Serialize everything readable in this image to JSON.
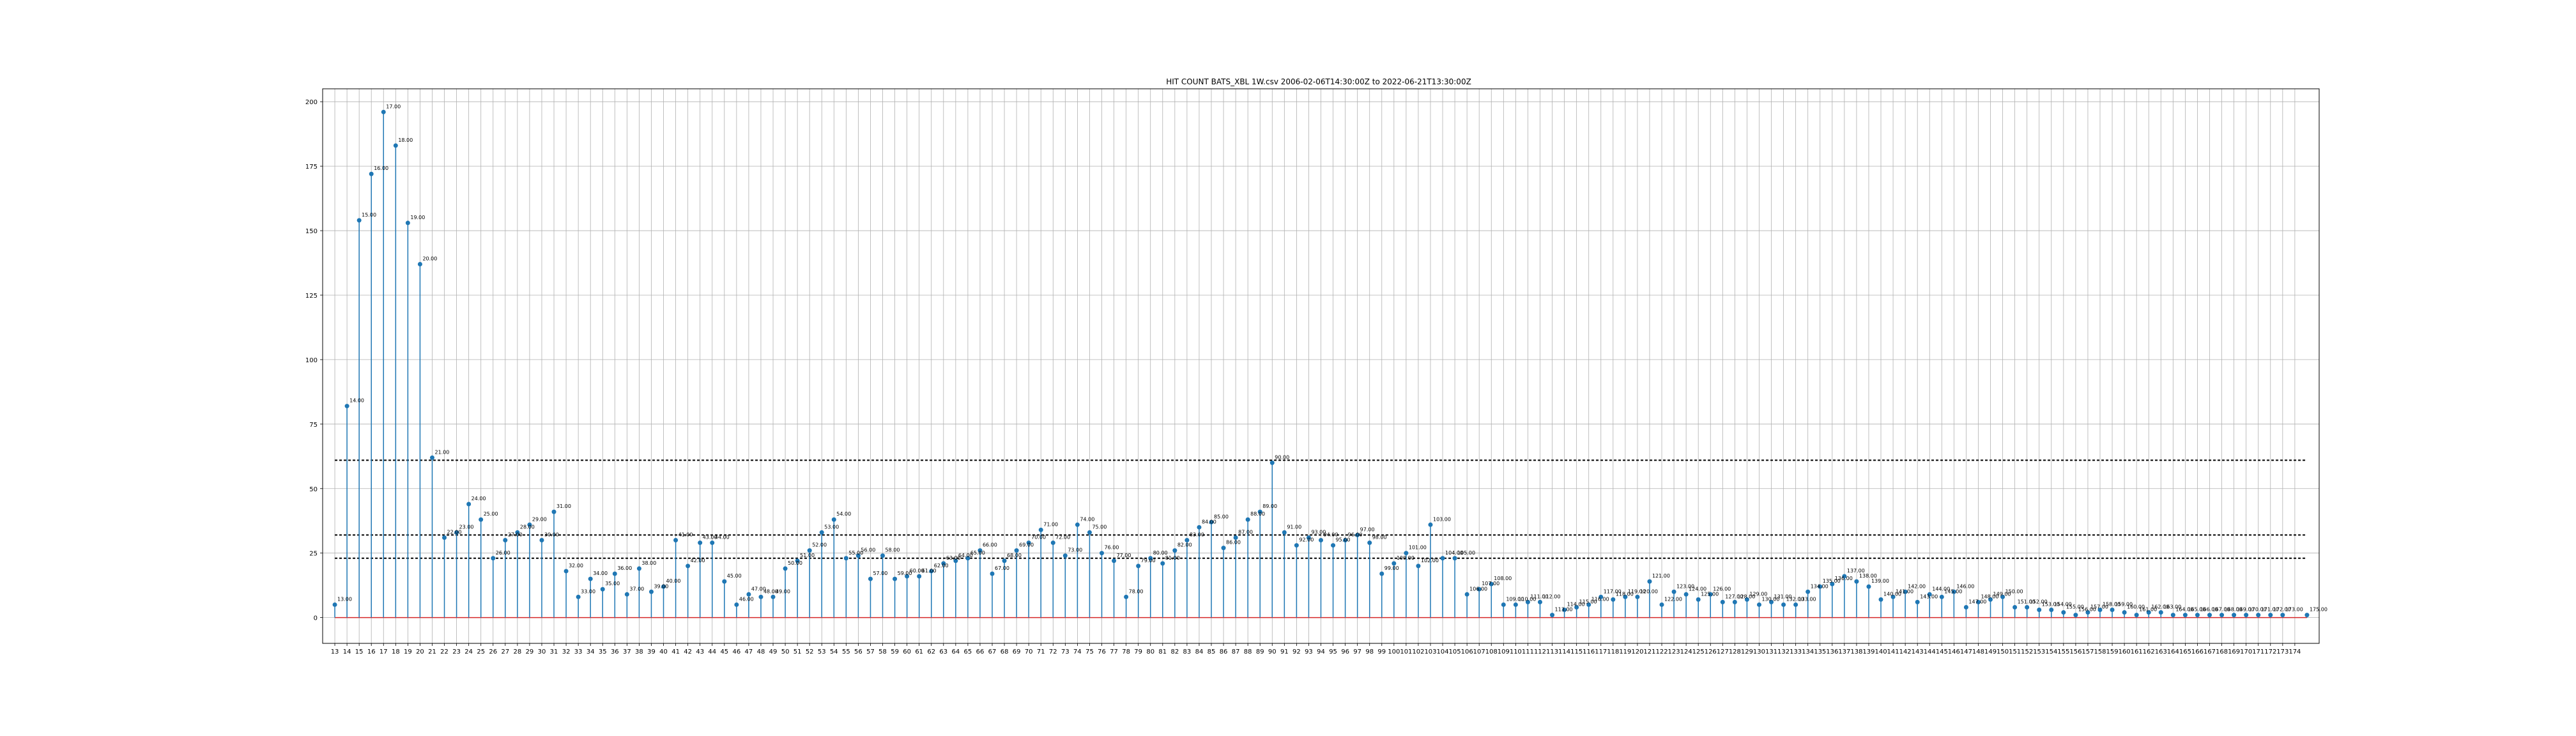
{
  "chart_data": {
    "type": "stem",
    "title": "HIT COUNT BATS_XBL 1W.csv 2006-02-06T14:30:00Z to 2022-06-21T13:30:00Z",
    "xlabel": "",
    "ylabel": "",
    "xlim": [
      12,
      176
    ],
    "ylim": [
      -10,
      205
    ],
    "yticks": [
      0,
      25,
      50,
      75,
      100,
      125,
      150,
      175,
      200
    ],
    "xticks_range": [
      13,
      174
    ],
    "grid": true,
    "colors": {
      "stem": "#1f77b4",
      "baseline": "#d62728",
      "threshold": "#000000",
      "grid": "#b0b0b0"
    },
    "thresholds": [
      61,
      32,
      23
    ],
    "points": [
      {
        "x": 13,
        "y": 5,
        "label": "13.00"
      },
      {
        "x": 14,
        "y": 82,
        "label": "14.00"
      },
      {
        "x": 15,
        "y": 154,
        "label": "15.00"
      },
      {
        "x": 16,
        "y": 172,
        "label": "16.00"
      },
      {
        "x": 17,
        "y": 196,
        "label": "17.00"
      },
      {
        "x": 18,
        "y": 183,
        "label": "18.00"
      },
      {
        "x": 19,
        "y": 153,
        "label": "19.00"
      },
      {
        "x": 20,
        "y": 137,
        "label": "20.00"
      },
      {
        "x": 21,
        "y": 62,
        "label": "21.00"
      },
      {
        "x": 22,
        "y": 31,
        "label": "22.00"
      },
      {
        "x": 23,
        "y": 33,
        "label": "23.00"
      },
      {
        "x": 24,
        "y": 44,
        "label": "24.00"
      },
      {
        "x": 25,
        "y": 38,
        "label": "25.00"
      },
      {
        "x": 26,
        "y": 23,
        "label": "26.00"
      },
      {
        "x": 27,
        "y": 30,
        "label": "27.00"
      },
      {
        "x": 28,
        "y": 33,
        "label": "28.00"
      },
      {
        "x": 29,
        "y": 36,
        "label": "29.00"
      },
      {
        "x": 30,
        "y": 30,
        "label": "30.00"
      },
      {
        "x": 31,
        "y": 41,
        "label": "31.00"
      },
      {
        "x": 32,
        "y": 18,
        "label": "32.00"
      },
      {
        "x": 33,
        "y": 8,
        "label": "33.00"
      },
      {
        "x": 34,
        "y": 15,
        "label": "34.00"
      },
      {
        "x": 35,
        "y": 11,
        "label": "35.00"
      },
      {
        "x": 36,
        "y": 17,
        "label": "36.00"
      },
      {
        "x": 37,
        "y": 9,
        "label": "37.00"
      },
      {
        "x": 38,
        "y": 19,
        "label": "38.00"
      },
      {
        "x": 39,
        "y": 10,
        "label": "39.00"
      },
      {
        "x": 40,
        "y": 12,
        "label": "40.00"
      },
      {
        "x": 41,
        "y": 30,
        "label": "41.00"
      },
      {
        "x": 42,
        "y": 20,
        "label": "42.00"
      },
      {
        "x": 43,
        "y": 29,
        "label": "43.00"
      },
      {
        "x": 44,
        "y": 29,
        "label": "44.00"
      },
      {
        "x": 45,
        "y": 14,
        "label": "45.00"
      },
      {
        "x": 46,
        "y": 5,
        "label": "46.00"
      },
      {
        "x": 47,
        "y": 9,
        "label": "47.00"
      },
      {
        "x": 48,
        "y": 8,
        "label": "48.00"
      },
      {
        "x": 49,
        "y": 8,
        "label": "49.00"
      },
      {
        "x": 50,
        "y": 19,
        "label": "50.00"
      },
      {
        "x": 51,
        "y": 22,
        "label": "51.00"
      },
      {
        "x": 52,
        "y": 26,
        "label": "52.00"
      },
      {
        "x": 53,
        "y": 33,
        "label": "53.00"
      },
      {
        "x": 54,
        "y": 38,
        "label": "54.00"
      },
      {
        "x": 55,
        "y": 23,
        "label": "55.00"
      },
      {
        "x": 56,
        "y": 24,
        "label": "56.00"
      },
      {
        "x": 57,
        "y": 15,
        "label": "57.00"
      },
      {
        "x": 58,
        "y": 24,
        "label": "58.00"
      },
      {
        "x": 59,
        "y": 15,
        "label": "59.00"
      },
      {
        "x": 60,
        "y": 16,
        "label": "60.00"
      },
      {
        "x": 61,
        "y": 16,
        "label": "61.00"
      },
      {
        "x": 62,
        "y": 18,
        "label": "62.00"
      },
      {
        "x": 63,
        "y": 21,
        "label": "63.00"
      },
      {
        "x": 64,
        "y": 22,
        "label": "64.00"
      },
      {
        "x": 65,
        "y": 23,
        "label": "65.00"
      },
      {
        "x": 66,
        "y": 26,
        "label": "66.00"
      },
      {
        "x": 67,
        "y": 17,
        "label": "67.00"
      },
      {
        "x": 68,
        "y": 22,
        "label": "68.00"
      },
      {
        "x": 69,
        "y": 26,
        "label": "69.00"
      },
      {
        "x": 70,
        "y": 29,
        "label": "70.00"
      },
      {
        "x": 71,
        "y": 34,
        "label": "71.00"
      },
      {
        "x": 72,
        "y": 29,
        "label": "72.00"
      },
      {
        "x": 73,
        "y": 24,
        "label": "73.00"
      },
      {
        "x": 74,
        "y": 36,
        "label": "74.00"
      },
      {
        "x": 75,
        "y": 33,
        "label": "75.00"
      },
      {
        "x": 76,
        "y": 25,
        "label": "76.00"
      },
      {
        "x": 77,
        "y": 22,
        "label": "77.00"
      },
      {
        "x": 78,
        "y": 8,
        "label": "78.00"
      },
      {
        "x": 79,
        "y": 20,
        "label": "79.00"
      },
      {
        "x": 80,
        "y": 23,
        "label": "80.00"
      },
      {
        "x": 81,
        "y": 21,
        "label": "81.00"
      },
      {
        "x": 82,
        "y": 26,
        "label": "82.00"
      },
      {
        "x": 83,
        "y": 30,
        "label": "83.00"
      },
      {
        "x": 84,
        "y": 35,
        "label": "84.00"
      },
      {
        "x": 85,
        "y": 37,
        "label": "85.00"
      },
      {
        "x": 86,
        "y": 27,
        "label": "86.00"
      },
      {
        "x": 87,
        "y": 31,
        "label": "87.00"
      },
      {
        "x": 88,
        "y": 38,
        "label": "88.00"
      },
      {
        "x": 89,
        "y": 41,
        "label": "89.00"
      },
      {
        "x": 90,
        "y": 60,
        "label": "90.00"
      },
      {
        "x": 91,
        "y": 33,
        "label": "91.00"
      },
      {
        "x": 92,
        "y": 28,
        "label": "92.00"
      },
      {
        "x": 93,
        "y": 31,
        "label": "93.00"
      },
      {
        "x": 94,
        "y": 30,
        "label": "94.00"
      },
      {
        "x": 95,
        "y": 28,
        "label": "95.00"
      },
      {
        "x": 96,
        "y": 30,
        "label": "96.00"
      },
      {
        "x": 97,
        "y": 32,
        "label": "97.00"
      },
      {
        "x": 98,
        "y": 29,
        "label": "98.00"
      },
      {
        "x": 99,
        "y": 17,
        "label": "99.00"
      },
      {
        "x": 100,
        "y": 21,
        "label": "100.00"
      },
      {
        "x": 101,
        "y": 25,
        "label": "101.00"
      },
      {
        "x": 102,
        "y": 20,
        "label": "102.00"
      },
      {
        "x": 103,
        "y": 36,
        "label": "103.00"
      },
      {
        "x": 104,
        "y": 23,
        "label": "104.00"
      },
      {
        "x": 105,
        "y": 23,
        "label": "105.00"
      },
      {
        "x": 106,
        "y": 9,
        "label": "106.00"
      },
      {
        "x": 107,
        "y": 11,
        "label": "107.00"
      },
      {
        "x": 108,
        "y": 13,
        "label": "108.00"
      },
      {
        "x": 109,
        "y": 5,
        "label": "109.00"
      },
      {
        "x": 110,
        "y": 5,
        "label": "110.00"
      },
      {
        "x": 111,
        "y": 6,
        "label": "111.00"
      },
      {
        "x": 112,
        "y": 6,
        "label": "112.00"
      },
      {
        "x": 113,
        "y": 1,
        "label": "113.00"
      },
      {
        "x": 114,
        "y": 3,
        "label": "114.00"
      },
      {
        "x": 115,
        "y": 4,
        "label": "115.00"
      },
      {
        "x": 116,
        "y": 5,
        "label": "116.00"
      },
      {
        "x": 117,
        "y": 8,
        "label": "117.00"
      },
      {
        "x": 118,
        "y": 7,
        "label": "118.00"
      },
      {
        "x": 119,
        "y": 8,
        "label": "119.00"
      },
      {
        "x": 120,
        "y": 8,
        "label": "120.00"
      },
      {
        "x": 121,
        "y": 14,
        "label": "121.00"
      },
      {
        "x": 122,
        "y": 5,
        "label": "122.00"
      },
      {
        "x": 123,
        "y": 10,
        "label": "123.00"
      },
      {
        "x": 124,
        "y": 9,
        "label": "124.00"
      },
      {
        "x": 125,
        "y": 7,
        "label": "125.00"
      },
      {
        "x": 126,
        "y": 9,
        "label": "126.00"
      },
      {
        "x": 127,
        "y": 6,
        "label": "127.00"
      },
      {
        "x": 128,
        "y": 6,
        "label": "128.00"
      },
      {
        "x": 129,
        "y": 7,
        "label": "129.00"
      },
      {
        "x": 130,
        "y": 5,
        "label": "130.00"
      },
      {
        "x": 131,
        "y": 6,
        "label": "131.00"
      },
      {
        "x": 132,
        "y": 5,
        "label": "132.00"
      },
      {
        "x": 133,
        "y": 5,
        "label": "133.00"
      },
      {
        "x": 134,
        "y": 10,
        "label": "134.00"
      },
      {
        "x": 135,
        "y": 12,
        "label": "135.00"
      },
      {
        "x": 136,
        "y": 13,
        "label": "136.00"
      },
      {
        "x": 137,
        "y": 16,
        "label": "137.00"
      },
      {
        "x": 138,
        "y": 14,
        "label": "138.00"
      },
      {
        "x": 139,
        "y": 12,
        "label": "139.00"
      },
      {
        "x": 140,
        "y": 7,
        "label": "140.00"
      },
      {
        "x": 141,
        "y": 8,
        "label": "141.00"
      },
      {
        "x": 142,
        "y": 10,
        "label": "142.00"
      },
      {
        "x": 143,
        "y": 6,
        "label": "143.00"
      },
      {
        "x": 144,
        "y": 9,
        "label": "144.00"
      },
      {
        "x": 145,
        "y": 8,
        "label": "145.00"
      },
      {
        "x": 146,
        "y": 10,
        "label": "146.00"
      },
      {
        "x": 147,
        "y": 4,
        "label": "147.00"
      },
      {
        "x": 148,
        "y": 6,
        "label": "148.00"
      },
      {
        "x": 149,
        "y": 7,
        "label": "149.00"
      },
      {
        "x": 150,
        "y": 8,
        "label": "150.00"
      },
      {
        "x": 151,
        "y": 4,
        "label": "151.00"
      },
      {
        "x": 152,
        "y": 4,
        "label": "152.00"
      },
      {
        "x": 153,
        "y": 3,
        "label": "153.00"
      },
      {
        "x": 154,
        "y": 3,
        "label": "154.00"
      },
      {
        "x": 155,
        "y": 2,
        "label": "155.00"
      },
      {
        "x": 156,
        "y": 1,
        "label": "156.00"
      },
      {
        "x": 157,
        "y": 2,
        "label": "157.00"
      },
      {
        "x": 158,
        "y": 3,
        "label": "158.00"
      },
      {
        "x": 159,
        "y": 3,
        "label": "159.00"
      },
      {
        "x": 160,
        "y": 2,
        "label": "160.00"
      },
      {
        "x": 161,
        "y": 1,
        "label": "161.00"
      },
      {
        "x": 162,
        "y": 2,
        "label": "162.00"
      },
      {
        "x": 163,
        "y": 2,
        "label": "163.00"
      },
      {
        "x": 164,
        "y": 1,
        "label": "164.00"
      },
      {
        "x": 165,
        "y": 1,
        "label": "165.00"
      },
      {
        "x": 166,
        "y": 1,
        "label": "166.00"
      },
      {
        "x": 167,
        "y": 1,
        "label": "167.00"
      },
      {
        "x": 168,
        "y": 1,
        "label": "168.00"
      },
      {
        "x": 169,
        "y": 1,
        "label": "169.00"
      },
      {
        "x": 170,
        "y": 1,
        "label": "170.00"
      },
      {
        "x": 171,
        "y": 1,
        "label": "171.00"
      },
      {
        "x": 172,
        "y": 1,
        "label": "172.00"
      },
      {
        "x": 173,
        "y": 1,
        "label": "173.00"
      },
      {
        "x": 175,
        "y": 1,
        "label": "175.00"
      }
    ]
  }
}
